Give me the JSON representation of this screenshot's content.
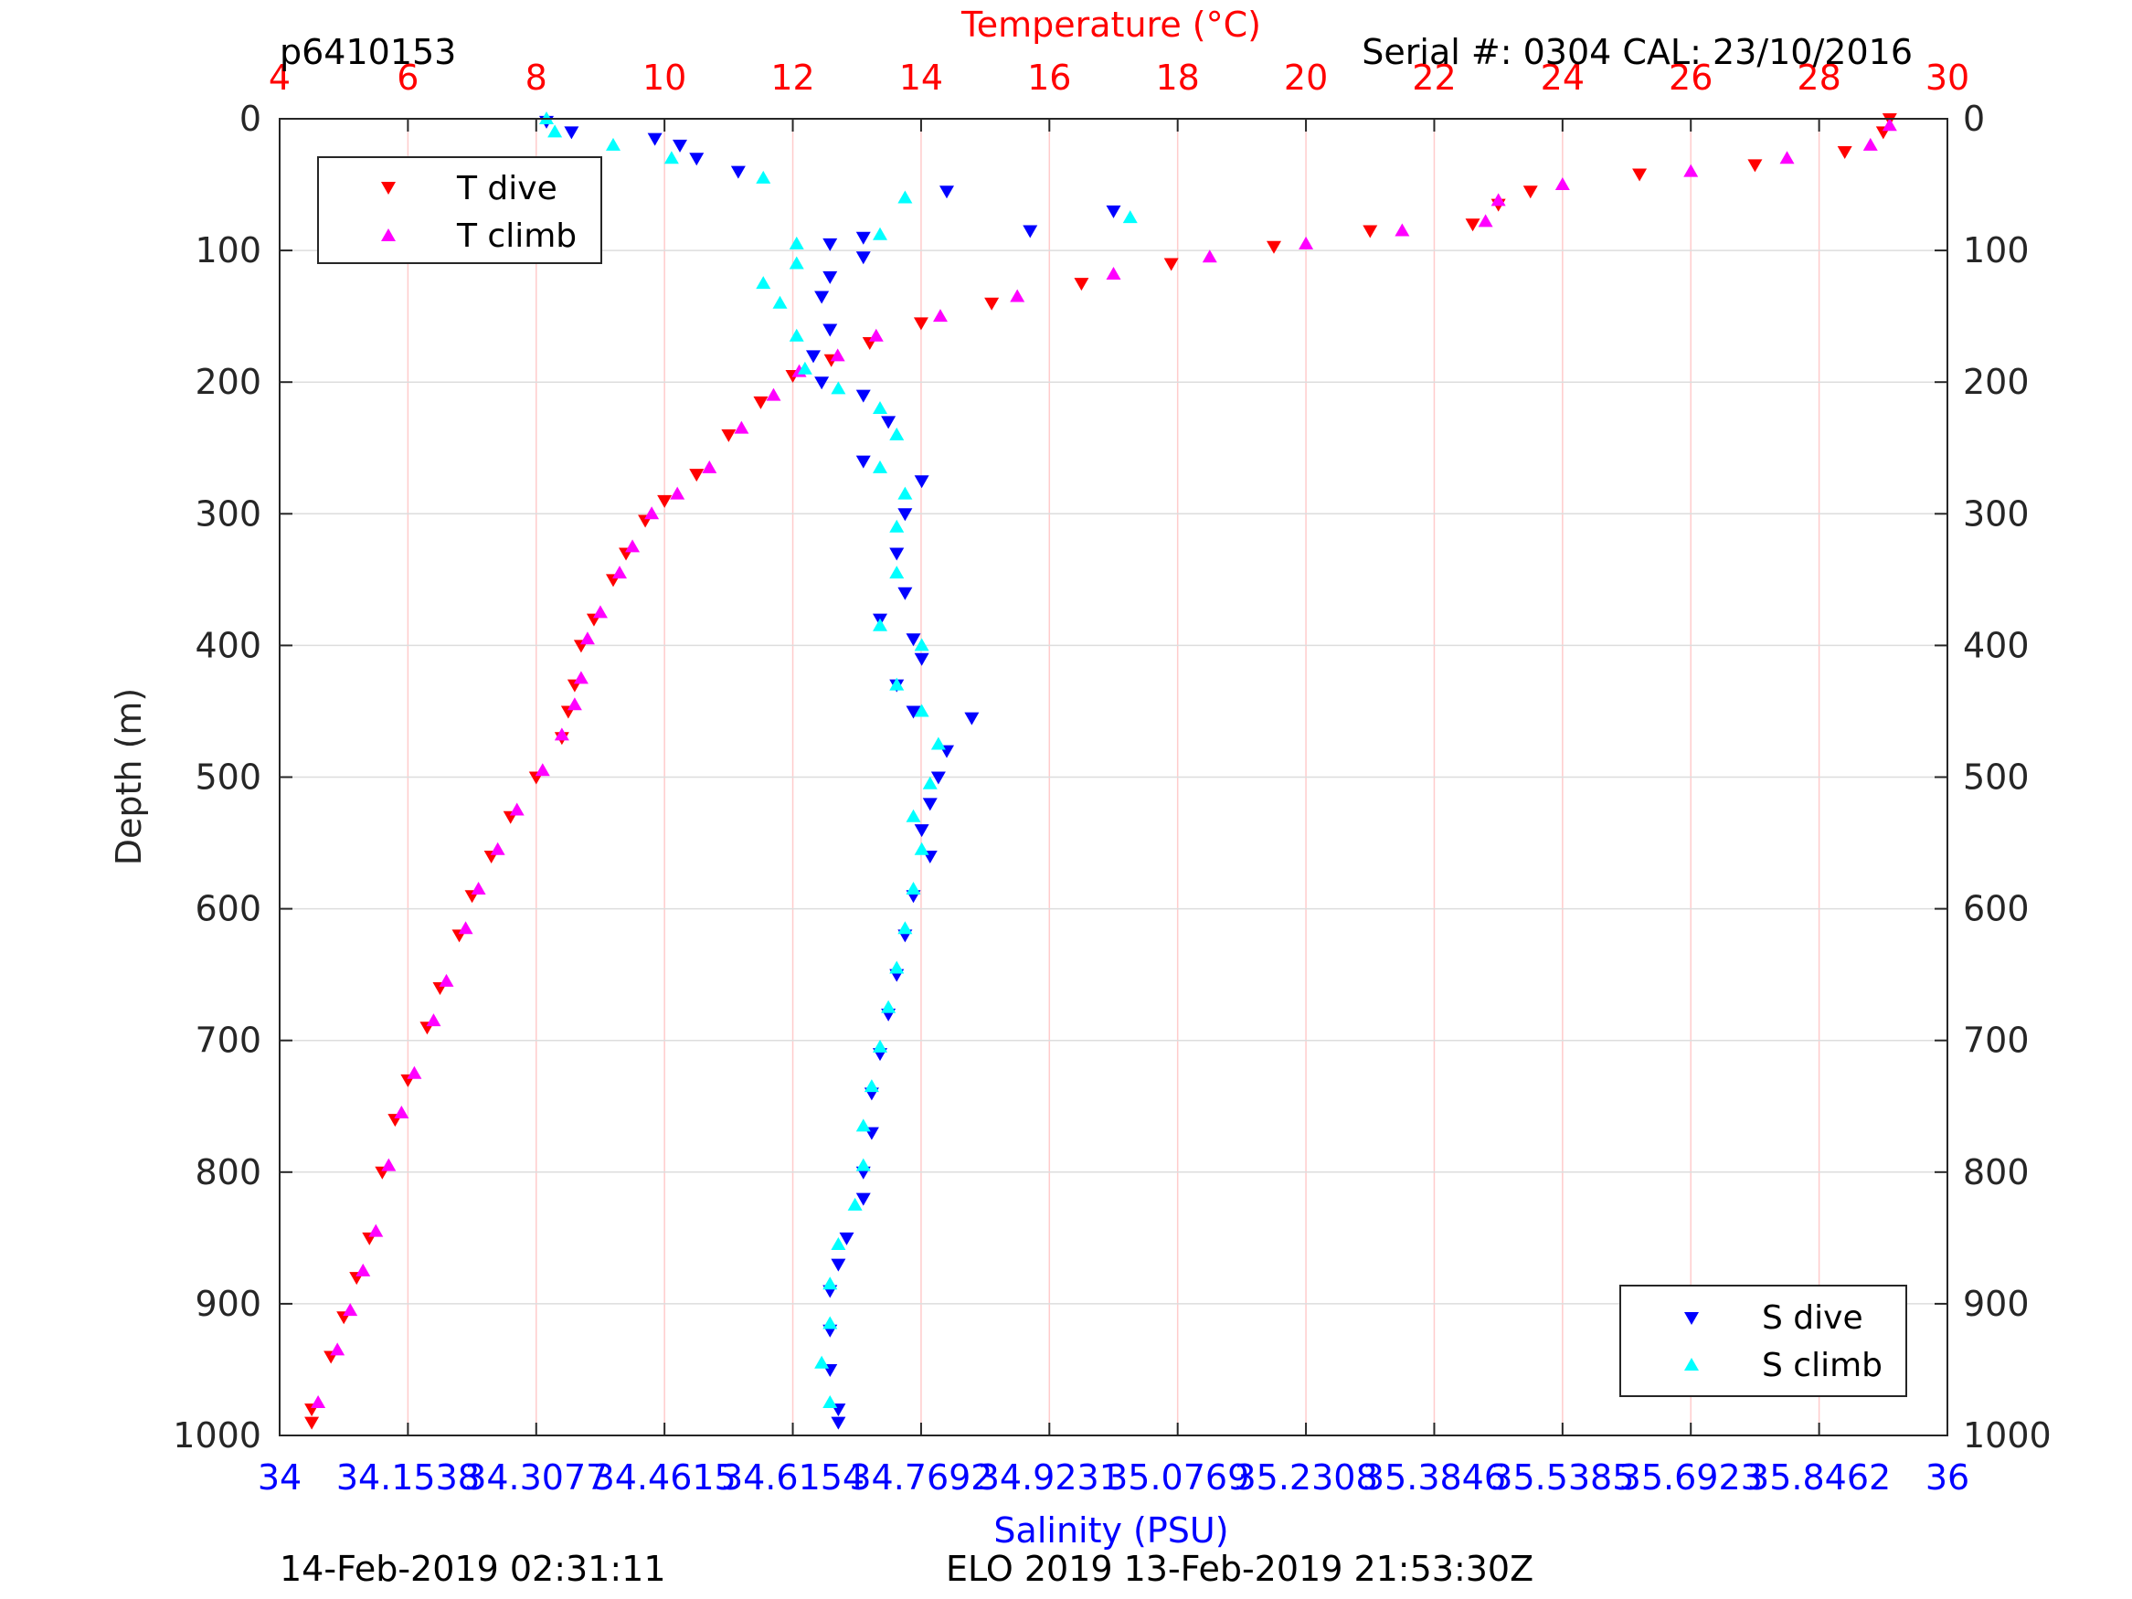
{
  "header": {
    "profile_id": "p6410153",
    "serial_cal": "Serial #: 0304  CAL: 23/10/2016"
  },
  "footer": {
    "left_timestamp": "14-Feb-2019 02:31:11",
    "right_info": "ELO 2019 13-Feb-2019 21:53:30Z"
  },
  "colors": {
    "temperature_axis": "#ff0000",
    "salinity_axis": "#0000ff",
    "t_dive": "#ff0000",
    "t_climb": "#ff00ff",
    "s_dive": "#0000ff",
    "s_climb": "#00ffff",
    "grid_vertical": "#ffcccc",
    "grid_horizontal": "#dddddd"
  },
  "chart_data": {
    "type": "scatter",
    "ylabel": "Depth (m)",
    "ylim": [
      1000,
      0
    ],
    "yticks": [
      "0",
      "100",
      "200",
      "300",
      "400",
      "500",
      "600",
      "700",
      "800",
      "900",
      "1000"
    ],
    "top_axis": {
      "label": "Temperature (°C)",
      "range": [
        4,
        30
      ],
      "ticks": [
        "4",
        "6",
        "8",
        "10",
        "12",
        "14",
        "16",
        "18",
        "20",
        "22",
        "24",
        "26",
        "28",
        "30"
      ]
    },
    "bottom_axis": {
      "label": "Salinity (PSU)",
      "range": [
        34,
        36
      ],
      "ticks": [
        "34",
        "34.1538",
        "34.3077",
        "34.4615",
        "34.6154",
        "34.7692",
        "34.9231",
        "35.0769",
        "35.2308",
        "35.3846",
        "35.5385",
        "35.6923",
        "35.8462",
        "36"
      ]
    },
    "grid": true,
    "legends": [
      {
        "position": "top-left",
        "entries": [
          "T dive",
          "T climb"
        ]
      },
      {
        "position": "bottom-right",
        "entries": [
          "S dive",
          "S climb"
        ]
      }
    ],
    "series": [
      {
        "name": "T dive",
        "axis": "temperature",
        "marker": "triangle-down",
        "color": "#ff0000",
        "points": [
          [
            29.1,
            0
          ],
          [
            29.0,
            10
          ],
          [
            28.4,
            25
          ],
          [
            27.0,
            35
          ],
          [
            25.2,
            42
          ],
          [
            23.5,
            55
          ],
          [
            23.0,
            65
          ],
          [
            22.6,
            80
          ],
          [
            21.0,
            85
          ],
          [
            19.5,
            97
          ],
          [
            17.9,
            110
          ],
          [
            16.5,
            125
          ],
          [
            15.1,
            140
          ],
          [
            14.0,
            155
          ],
          [
            13.2,
            170
          ],
          [
            12.6,
            183
          ],
          [
            12.0,
            195
          ],
          [
            11.5,
            215
          ],
          [
            11.0,
            240
          ],
          [
            10.5,
            270
          ],
          [
            10.0,
            290
          ],
          [
            9.7,
            305
          ],
          [
            9.4,
            330
          ],
          [
            9.2,
            350
          ],
          [
            8.9,
            380
          ],
          [
            8.7,
            400
          ],
          [
            8.6,
            430
          ],
          [
            8.5,
            450
          ],
          [
            8.4,
            470
          ],
          [
            8.0,
            500
          ],
          [
            7.6,
            530
          ],
          [
            7.3,
            560
          ],
          [
            7.0,
            590
          ],
          [
            6.8,
            620
          ],
          [
            6.5,
            660
          ],
          [
            6.3,
            690
          ],
          [
            6.0,
            730
          ],
          [
            5.8,
            760
          ],
          [
            5.6,
            800
          ],
          [
            5.4,
            850
          ],
          [
            5.2,
            880
          ],
          [
            5.0,
            910
          ],
          [
            4.8,
            940
          ],
          [
            4.5,
            980
          ],
          [
            4.5,
            990
          ]
        ]
      },
      {
        "name": "T climb",
        "axis": "temperature",
        "marker": "triangle-up",
        "color": "#ff00ff",
        "points": [
          [
            29.1,
            5
          ],
          [
            28.8,
            20
          ],
          [
            27.5,
            30
          ],
          [
            26.0,
            40
          ],
          [
            24.0,
            50
          ],
          [
            23.0,
            62
          ],
          [
            22.8,
            78
          ],
          [
            21.5,
            85
          ],
          [
            20.0,
            95
          ],
          [
            18.5,
            105
          ],
          [
            17.0,
            118
          ],
          [
            15.5,
            135
          ],
          [
            14.3,
            150
          ],
          [
            13.3,
            165
          ],
          [
            12.7,
            180
          ],
          [
            12.1,
            192
          ],
          [
            11.7,
            210
          ],
          [
            11.2,
            235
          ],
          [
            10.7,
            265
          ],
          [
            10.2,
            285
          ],
          [
            9.8,
            300
          ],
          [
            9.5,
            325
          ],
          [
            9.3,
            345
          ],
          [
            9.0,
            375
          ],
          [
            8.8,
            395
          ],
          [
            8.7,
            425
          ],
          [
            8.6,
            445
          ],
          [
            8.4,
            468
          ],
          [
            8.1,
            495
          ],
          [
            7.7,
            525
          ],
          [
            7.4,
            555
          ],
          [
            7.1,
            585
          ],
          [
            6.9,
            615
          ],
          [
            6.6,
            655
          ],
          [
            6.4,
            685
          ],
          [
            6.1,
            725
          ],
          [
            5.9,
            755
          ],
          [
            5.7,
            795
          ],
          [
            5.5,
            845
          ],
          [
            5.3,
            875
          ],
          [
            5.1,
            905
          ],
          [
            4.9,
            935
          ],
          [
            4.6,
            975
          ]
        ]
      },
      {
        "name": "S dive",
        "axis": "salinity",
        "marker": "triangle-down",
        "color": "#0000ff",
        "points": [
          [
            34.32,
            2
          ],
          [
            34.35,
            10
          ],
          [
            34.45,
            15
          ],
          [
            34.48,
            20
          ],
          [
            34.5,
            30
          ],
          [
            34.55,
            40
          ],
          [
            34.8,
            55
          ],
          [
            35.0,
            70
          ],
          [
            34.9,
            85
          ],
          [
            34.7,
            90
          ],
          [
            34.66,
            95
          ],
          [
            34.7,
            105
          ],
          [
            34.66,
            120
          ],
          [
            34.65,
            135
          ],
          [
            34.66,
            160
          ],
          [
            34.64,
            180
          ],
          [
            34.65,
            200
          ],
          [
            34.7,
            210
          ],
          [
            34.73,
            230
          ],
          [
            34.7,
            260
          ],
          [
            34.77,
            275
          ],
          [
            34.75,
            300
          ],
          [
            34.74,
            330
          ],
          [
            34.75,
            360
          ],
          [
            34.72,
            380
          ],
          [
            34.76,
            395
          ],
          [
            34.77,
            410
          ],
          [
            34.74,
            430
          ],
          [
            34.76,
            450
          ],
          [
            34.83,
            455
          ],
          [
            34.8,
            480
          ],
          [
            34.79,
            500
          ],
          [
            34.78,
            520
          ],
          [
            34.77,
            540
          ],
          [
            34.78,
            560
          ],
          [
            34.76,
            590
          ],
          [
            34.75,
            620
          ],
          [
            34.74,
            650
          ],
          [
            34.73,
            680
          ],
          [
            34.72,
            710
          ],
          [
            34.71,
            740
          ],
          [
            34.71,
            770
          ],
          [
            34.7,
            800
          ],
          [
            34.7,
            820
          ],
          [
            34.68,
            850
          ],
          [
            34.67,
            870
          ],
          [
            34.66,
            890
          ],
          [
            34.66,
            920
          ],
          [
            34.66,
            950
          ],
          [
            34.67,
            980
          ],
          [
            34.67,
            990
          ]
        ]
      },
      {
        "name": "S climb",
        "axis": "salinity",
        "marker": "triangle-up",
        "color": "#00ffff",
        "points": [
          [
            34.32,
            0
          ],
          [
            34.33,
            10
          ],
          [
            34.4,
            20
          ],
          [
            34.47,
            30
          ],
          [
            34.58,
            45
          ],
          [
            34.75,
            60
          ],
          [
            35.02,
            75
          ],
          [
            34.72,
            88
          ],
          [
            34.62,
            95
          ],
          [
            34.62,
            110
          ],
          [
            34.58,
            125
          ],
          [
            34.6,
            140
          ],
          [
            34.62,
            165
          ],
          [
            34.63,
            190
          ],
          [
            34.67,
            205
          ],
          [
            34.72,
            220
          ],
          [
            34.74,
            240
          ],
          [
            34.72,
            265
          ],
          [
            34.75,
            285
          ],
          [
            34.74,
            310
          ],
          [
            34.74,
            345
          ],
          [
            34.72,
            385
          ],
          [
            34.77,
            400
          ],
          [
            34.74,
            430
          ],
          [
            34.77,
            450
          ],
          [
            34.79,
            475
          ],
          [
            34.78,
            505
          ],
          [
            34.76,
            530
          ],
          [
            34.77,
            555
          ],
          [
            34.76,
            585
          ],
          [
            34.75,
            615
          ],
          [
            34.74,
            645
          ],
          [
            34.73,
            675
          ],
          [
            34.72,
            705
          ],
          [
            34.71,
            735
          ],
          [
            34.7,
            765
          ],
          [
            34.7,
            795
          ],
          [
            34.69,
            825
          ],
          [
            34.67,
            855
          ],
          [
            34.66,
            885
          ],
          [
            34.66,
            915
          ],
          [
            34.65,
            945
          ],
          [
            34.66,
            975
          ]
        ]
      }
    ]
  }
}
